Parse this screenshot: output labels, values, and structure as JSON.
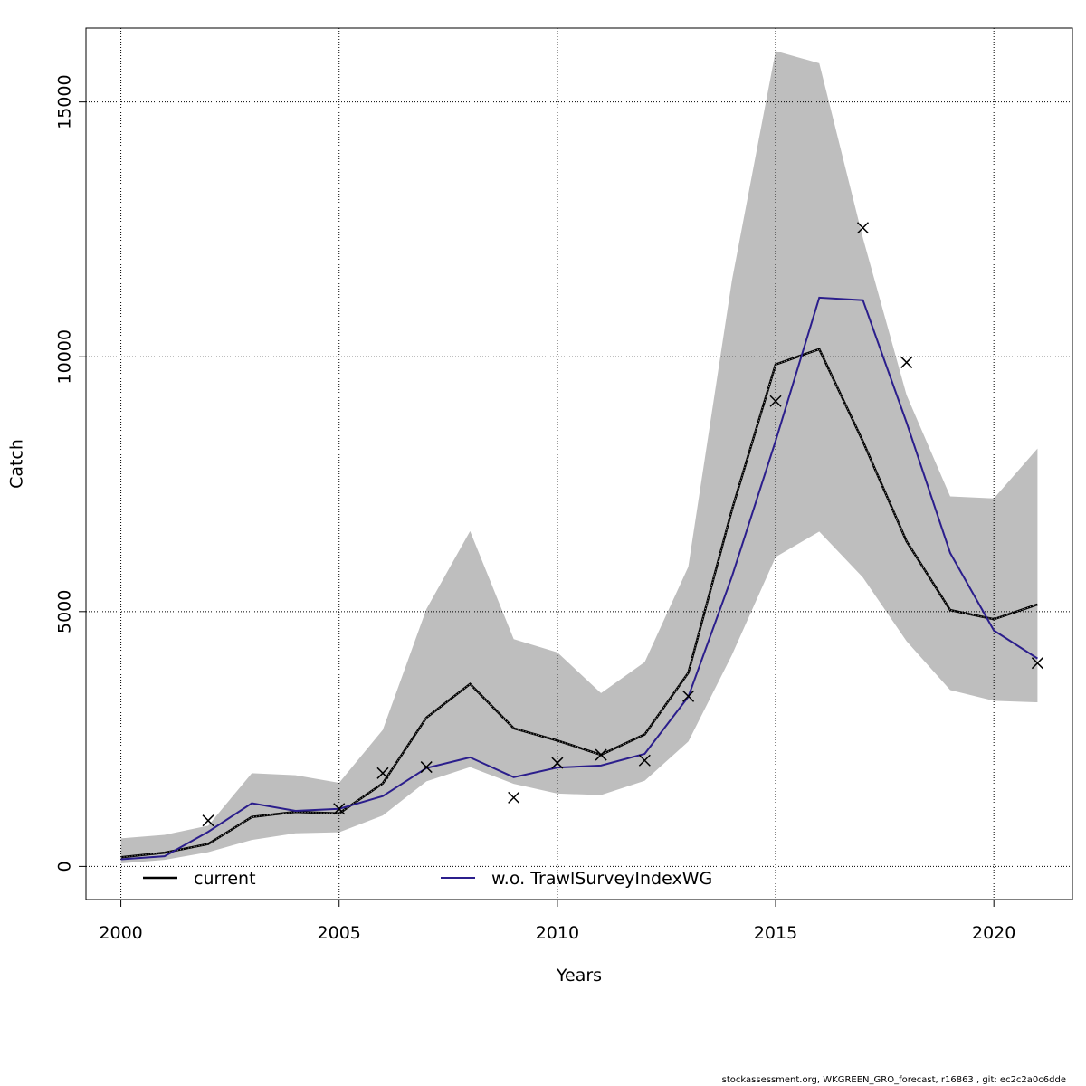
{
  "chart_data": {
    "type": "line",
    "xlabel": "Years",
    "ylabel": "Catch",
    "xlim": [
      1999.2,
      2021.8
    ],
    "ylim": [
      -650,
      16450
    ],
    "xticks": [
      2000,
      2005,
      2010,
      2015,
      2020
    ],
    "yticks": [
      0,
      5000,
      10000,
      15000
    ],
    "grid": true,
    "legend_position": "bottom",
    "x": [
      2000,
      2001,
      2002,
      2003,
      2004,
      2005,
      2006,
      2007,
      2008,
      2009,
      2010,
      2011,
      2012,
      2013,
      2014,
      2015,
      2016,
      2017,
      2018,
      2019,
      2020,
      2021
    ],
    "confidence_band": {
      "upper": [
        550,
        620,
        800,
        1830,
        1790,
        1640,
        2680,
        5050,
        6580,
        4460,
        4200,
        3400,
        4010,
        5880,
        11500,
        16000,
        15760,
        12330,
        9250,
        7260,
        7220,
        8200
      ],
      "lower": [
        60,
        130,
        280,
        520,
        650,
        670,
        1000,
        1670,
        1950,
        1620,
        1430,
        1400,
        1680,
        2450,
        4150,
        6070,
        6570,
        5670,
        4420,
        3460,
        3250,
        3220
      ]
    },
    "series": [
      {
        "name": "current",
        "color": "#000000",
        "style": "solid-with-dotted-overlay",
        "values": [
          180,
          270,
          440,
          970,
          1070,
          1040,
          1630,
          2920,
          3580,
          2710,
          2470,
          2190,
          2590,
          3800,
          7000,
          9850,
          10150,
          8340,
          6380,
          5030,
          4850,
          5140
        ]
      },
      {
        "name": "w.o. TrawlSurveyIndexWG",
        "color": "#2b1e8c",
        "style": "solid",
        "values": [
          140,
          200,
          680,
          1240,
          1090,
          1130,
          1380,
          1930,
          2140,
          1750,
          1940,
          1980,
          2210,
          3330,
          5690,
          8350,
          11160,
          11110,
          8710,
          6150,
          4630,
          4080
        ]
      }
    ],
    "observations": {
      "marker": "x",
      "x": [
        2002,
        2005,
        2006,
        2007,
        2009,
        2010,
        2011,
        2012,
        2013,
        2015,
        2017,
        2018,
        2021
      ],
      "values": [
        900,
        1130,
        1830,
        1950,
        1350,
        2030,
        2190,
        2080,
        3340,
        9130,
        12530,
        9890,
        3990
      ]
    }
  },
  "footer_text": "stockassessment.org, WKGREEN_GRO_forecast, r16863 , git: ec2c2a0c6dde",
  "colors": {
    "band": "#bebebe",
    "grid": "#000000",
    "frame": "#000000"
  }
}
